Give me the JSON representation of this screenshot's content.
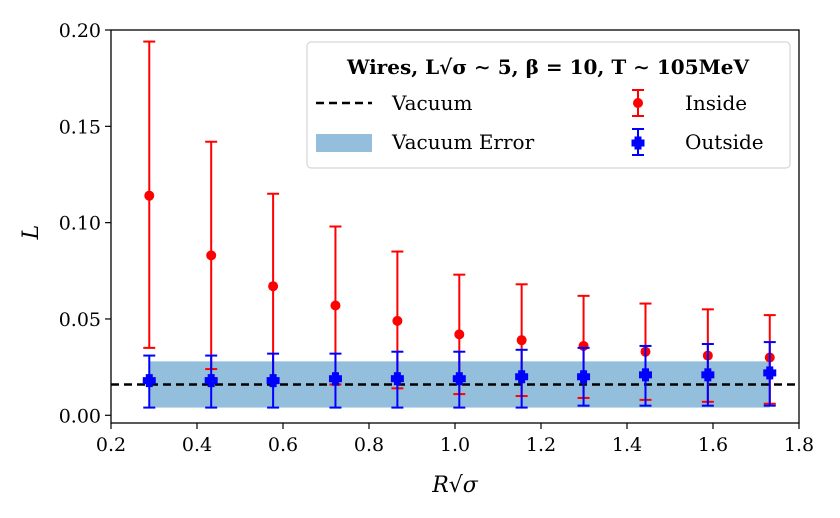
{
  "chart_data": {
    "type": "scatter",
    "title": "",
    "xlabel": "R√σ",
    "ylabel": "L",
    "xlim": [
      0.2,
      1.8
    ],
    "ylim": [
      -0.004,
      0.2
    ],
    "xticks": [
      0.2,
      0.4,
      0.6,
      0.8,
      1.0,
      1.2,
      1.4,
      1.6,
      1.8
    ],
    "xtick_labels": [
      "0.2",
      "0.4",
      "0.6",
      "0.8",
      "1.0",
      "1.2",
      "1.4",
      "1.6",
      "1.8"
    ],
    "yticks": [
      0.0,
      0.05,
      0.1,
      0.15,
      0.2
    ],
    "ytick_labels": [
      "0.00",
      "0.05",
      "0.10",
      "0.15",
      "0.20"
    ],
    "legend": {
      "title": "Wires, L√σ ∼ 5, β = 10, T ∼ 105MeV",
      "position": "top-right",
      "entries": [
        "Vacuum",
        "Inside",
        "Vacuum Error",
        "Outside"
      ]
    },
    "vacuum": {
      "name": "Vacuum",
      "value": 0.016,
      "color": "#000000"
    },
    "vacuum_error": {
      "name": "Vacuum Error",
      "low": 0.004,
      "high": 0.028,
      "x_range": [
        0.289,
        1.732
      ],
      "color": "#93bfdd"
    },
    "series": [
      {
        "name": "Inside",
        "color": "#ff0000",
        "marker": "circle",
        "x": [
          0.289,
          0.433,
          0.577,
          0.722,
          0.866,
          1.01,
          1.155,
          1.299,
          1.443,
          1.588,
          1.732
        ],
        "y": [
          0.114,
          0.083,
          0.067,
          0.057,
          0.049,
          0.042,
          0.039,
          0.036,
          0.033,
          0.031,
          0.03
        ],
        "err_low": [
          0.035,
          0.024,
          0.019,
          0.016,
          0.014,
          0.011,
          0.01,
          0.009,
          0.008,
          0.007,
          0.006
        ],
        "err_high": [
          0.194,
          0.142,
          0.115,
          0.098,
          0.085,
          0.073,
          0.068,
          0.062,
          0.058,
          0.055,
          0.052
        ]
      },
      {
        "name": "Outside",
        "color": "#0000ff",
        "marker": "plus",
        "x": [
          0.289,
          0.433,
          0.577,
          0.722,
          0.866,
          1.01,
          1.155,
          1.299,
          1.443,
          1.588,
          1.732
        ],
        "y": [
          0.018,
          0.018,
          0.018,
          0.019,
          0.019,
          0.019,
          0.02,
          0.02,
          0.021,
          0.021,
          0.022
        ],
        "err_low": [
          0.004,
          0.004,
          0.004,
          0.004,
          0.004,
          0.004,
          0.004,
          0.005,
          0.005,
          0.005,
          0.005
        ],
        "err_high": [
          0.031,
          0.031,
          0.032,
          0.032,
          0.033,
          0.033,
          0.034,
          0.035,
          0.036,
          0.037,
          0.038
        ]
      }
    ]
  }
}
